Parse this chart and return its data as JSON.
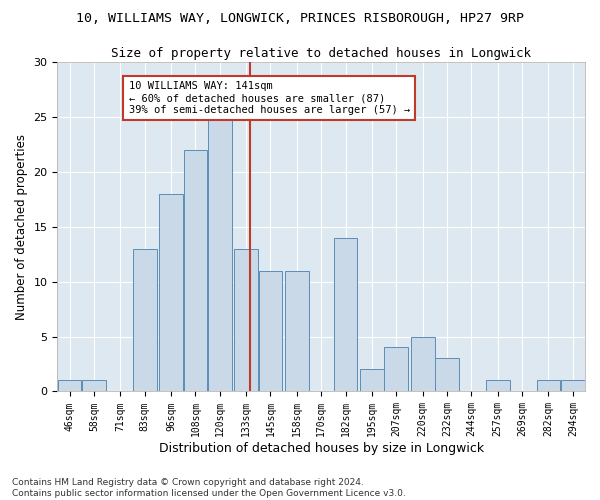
{
  "title1": "10, WILLIAMS WAY, LONGWICK, PRINCES RISBOROUGH, HP27 9RP",
  "title2": "Size of property relative to detached houses in Longwick",
  "xlabel": "Distribution of detached houses by size in Longwick",
  "ylabel": "Number of detached properties",
  "footer1": "Contains HM Land Registry data © Crown copyright and database right 2024.",
  "footer2": "Contains public sector information licensed under the Open Government Licence v3.0.",
  "bins": [
    46,
    58,
    71,
    83,
    96,
    108,
    120,
    133,
    145,
    158,
    170,
    182,
    195,
    207,
    220,
    232,
    244,
    257,
    269,
    282,
    294
  ],
  "bin_width": 12,
  "counts": [
    1,
    1,
    0,
    13,
    18,
    22,
    25,
    13,
    11,
    11,
    0,
    14,
    2,
    4,
    5,
    3,
    0,
    1,
    0,
    1,
    1
  ],
  "bar_color": "#c9d9e8",
  "bar_edge_color": "#5b8db8",
  "vline_x": 141,
  "vline_color": "#c0392b",
  "annotation_text": "10 WILLIAMS WAY: 141sqm\n← 60% of detached houses are smaller (87)\n39% of semi-detached houses are larger (57) →",
  "annotation_box_color": "#ffffff",
  "annotation_box_edge": "#c0392b",
  "ylim": [
    0,
    30
  ],
  "yticks": [
    0,
    5,
    10,
    15,
    20,
    25,
    30
  ],
  "plot_bg_color": "#dde8f0",
  "title1_fontsize": 9.5,
  "title2_fontsize": 9,
  "xlabel_fontsize": 9,
  "ylabel_fontsize": 8.5,
  "annotation_fontsize": 7.5,
  "tick_fontsize": 7,
  "footer_fontsize": 6.5
}
